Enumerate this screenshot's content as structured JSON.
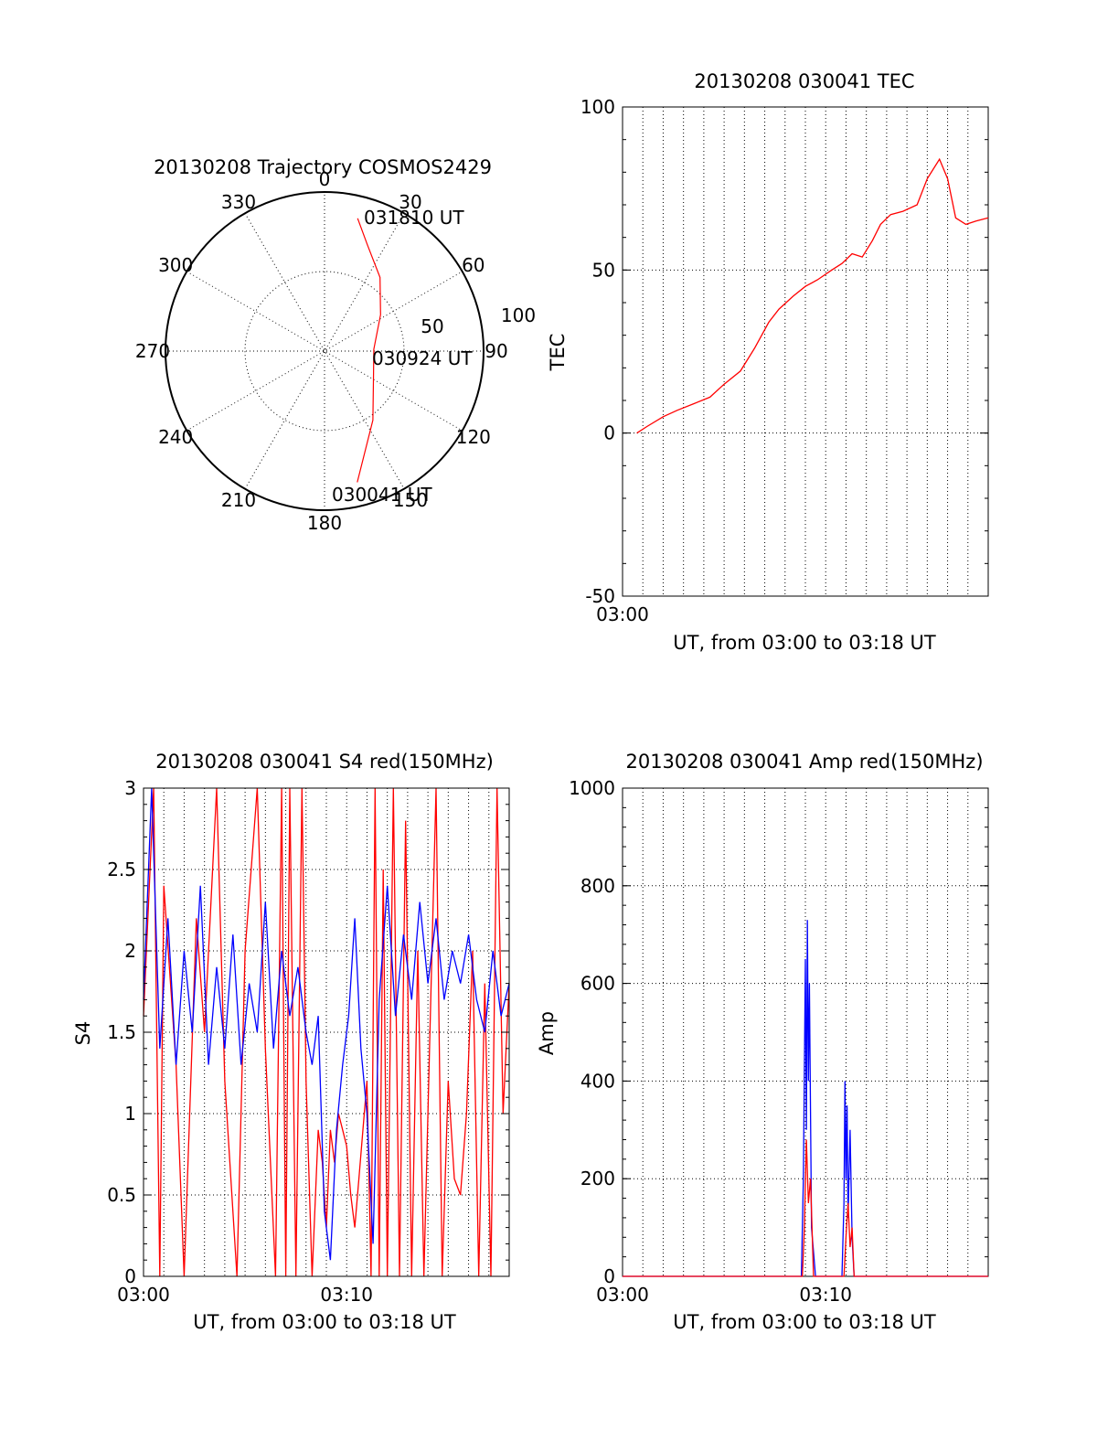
{
  "chart_data": [
    {
      "type": "scatter",
      "subtype": "polar-trajectory",
      "title": "20130208 Trajectory COSMOS2429",
      "azimuth_labels": [
        "0",
        "30",
        "60",
        "90",
        "120",
        "150",
        "180",
        "210",
        "240",
        "270",
        "300",
        "330"
      ],
      "radial_labels": [
        "50",
        "100"
      ],
      "rlim": [
        0,
        100
      ],
      "points_label": [
        "031810 UT",
        "030924 UT",
        "030041 UT"
      ],
      "series": [
        {
          "color": "#ff0000",
          "points": [
            {
              "az": 14,
              "zenith": 86
            },
            {
              "az": 22,
              "zenith": 72
            },
            {
              "az": 37,
              "zenith": 58
            },
            {
              "az": 57,
              "zenith": 42
            },
            {
              "az": 88,
              "zenith": 31
            },
            {
              "az": 115,
              "zenith": 34
            },
            {
              "az": 145,
              "zenith": 53
            },
            {
              "az": 166,
              "zenith": 85
            }
          ]
        }
      ]
    },
    {
      "type": "line",
      "title": "20130208 030041 TEC",
      "xlabel": "UT, from 03:00 to 03:18 UT",
      "ylabel": "TEC",
      "xlim": [
        0,
        18
      ],
      "ylim": [
        -50,
        100
      ],
      "xticks": [
        {
          "v": 0,
          "label": "03:00"
        }
      ],
      "yticks": [
        {
          "v": -50,
          "label": "-50"
        },
        {
          "v": 0,
          "label": "0"
        },
        {
          "v": 50,
          "label": "50"
        },
        {
          "v": 100,
          "label": "100"
        }
      ],
      "series": [
        {
          "color": "#ff0000",
          "x": [
            0.7,
            1.2,
            2.0,
            2.7,
            3.5,
            4.3,
            5.0,
            5.8,
            6.5,
            7.2,
            7.7,
            8.4,
            9.0,
            9.6,
            10.3,
            10.8,
            11.3,
            11.8,
            12.3,
            12.7,
            13.2,
            13.8,
            14.5,
            15.0,
            15.6,
            16.0,
            16.4,
            16.9,
            17.4,
            18.0
          ],
          "y": [
            0,
            2,
            5,
            7,
            9,
            11,
            15,
            19,
            26,
            34,
            38,
            42,
            45,
            47,
            50,
            52,
            55,
            54,
            59,
            64,
            67,
            68,
            70,
            78,
            84,
            78,
            66,
            64,
            65,
            66
          ]
        }
      ]
    },
    {
      "type": "line",
      "title": "20130208 030041 S4 red(150MHz)",
      "xlabel": "UT, from 03:00 to 03:18 UT",
      "ylabel": "S4",
      "xlim": [
        0,
        18
      ],
      "ylim": [
        0,
        3
      ],
      "xticks": [
        {
          "v": 0,
          "label": "03:00"
        },
        {
          "v": 10,
          "label": "03:10"
        }
      ],
      "yticks": [
        {
          "v": 0,
          "label": "0"
        },
        {
          "v": 0.5,
          "label": "0.5"
        },
        {
          "v": 1,
          "label": "1"
        },
        {
          "v": 1.5,
          "label": "1.5"
        },
        {
          "v": 2,
          "label": "2"
        },
        {
          "v": 2.5,
          "label": "2.5"
        },
        {
          "v": 3,
          "label": "3"
        }
      ],
      "series": [
        {
          "color": "#ff0000",
          "x": [
            0.0,
            0.5,
            0.8,
            1.0,
            1.6,
            2.0,
            2.6,
            3.0,
            3.6,
            4.0,
            4.6,
            5.0,
            5.6,
            6.0,
            6.5,
            6.8,
            7.0,
            7.2,
            7.5,
            7.8,
            8.0,
            8.3,
            8.6,
            8.8,
            9.0,
            9.2,
            9.4,
            9.6,
            9.8,
            10.0,
            10.2,
            10.4,
            10.6,
            10.8,
            11.0,
            11.2,
            11.4,
            11.6,
            11.8,
            12.0,
            12.3,
            12.6,
            12.9,
            13.2,
            13.5,
            13.8,
            14.1,
            14.4,
            14.7,
            15.0,
            15.3,
            15.6,
            15.9,
            16.2,
            16.5,
            16.8,
            17.1,
            17.4,
            17.7,
            18.0
          ],
          "y": [
            1.6,
            3.0,
            0.0,
            2.4,
            1.3,
            0.0,
            2.2,
            1.5,
            3.0,
            1.2,
            0.0,
            2.0,
            3.0,
            1.4,
            0.0,
            3.0,
            0.0,
            3.0,
            0.0,
            3.0,
            1.2,
            0.0,
            0.9,
            0.7,
            0.3,
            0.9,
            0.7,
            1.0,
            0.9,
            0.8,
            0.5,
            0.3,
            0.6,
            0.9,
            1.2,
            0.0,
            3.0,
            0.0,
            2.5,
            0.0,
            3.0,
            0.0,
            2.8,
            0.0,
            2.0,
            0.0,
            1.5,
            3.0,
            0.0,
            1.2,
            0.6,
            0.5,
            1.0,
            2.0,
            0.0,
            1.8,
            0.0,
            3.0,
            1.0,
            1.8
          ]
        },
        {
          "color": "#0000ff",
          "x": [
            0.0,
            0.4,
            0.8,
            1.2,
            1.6,
            2.0,
            2.4,
            2.8,
            3.2,
            3.6,
            4.0,
            4.4,
            4.8,
            5.2,
            5.6,
            6.0,
            6.4,
            6.8,
            7.2,
            7.6,
            8.0,
            8.3,
            8.6,
            8.9,
            9.2,
            9.5,
            9.8,
            10.1,
            10.4,
            10.7,
            11.0,
            11.3,
            11.6,
            12.0,
            12.4,
            12.8,
            13.2,
            13.6,
            14.0,
            14.4,
            14.8,
            15.2,
            15.6,
            16.0,
            16.4,
            16.8,
            17.2,
            17.6,
            18.0
          ],
          "y": [
            1.7,
            3.0,
            1.4,
            2.2,
            1.3,
            2.0,
            1.5,
            2.4,
            1.3,
            1.9,
            1.4,
            2.1,
            1.3,
            1.8,
            1.5,
            2.3,
            1.4,
            2.0,
            1.6,
            1.9,
            1.5,
            1.3,
            1.6,
            0.4,
            0.1,
            0.9,
            1.3,
            1.6,
            2.2,
            1.4,
            1.0,
            0.2,
            1.7,
            2.4,
            1.6,
            2.1,
            1.7,
            2.3,
            1.8,
            2.2,
            1.7,
            2.0,
            1.8,
            2.1,
            1.7,
            1.5,
            2.0,
            1.6,
            1.8
          ]
        }
      ]
    },
    {
      "type": "line",
      "title": "20130208 030041 Amp red(150MHz)",
      "xlabel": "UT, from 03:00 to 03:18 UT",
      "ylabel": "Amp",
      "xlim": [
        0,
        18
      ],
      "ylim": [
        0,
        1000
      ],
      "xticks": [
        {
          "v": 0,
          "label": "03:00"
        },
        {
          "v": 10,
          "label": "03:10"
        }
      ],
      "yticks": [
        {
          "v": 0,
          "label": "0"
        },
        {
          "v": 200,
          "label": "200"
        },
        {
          "v": 400,
          "label": "400"
        },
        {
          "v": 600,
          "label": "600"
        },
        {
          "v": 800,
          "label": "800"
        },
        {
          "v": 1000,
          "label": "1000"
        }
      ],
      "series": [
        {
          "color": "#0000ff",
          "x": [
            0.0,
            8.8,
            8.9,
            9.0,
            9.05,
            9.1,
            9.15,
            9.2,
            9.3,
            9.5,
            10.8,
            10.9,
            10.95,
            11.0,
            11.05,
            11.1,
            11.2,
            11.3,
            11.4,
            18.0
          ],
          "y": [
            0,
            0,
            200,
            650,
            300,
            730,
            400,
            600,
            100,
            0,
            0,
            150,
            400,
            200,
            350,
            120,
            300,
            80,
            0,
            0
          ]
        },
        {
          "color": "#ff0000",
          "x": [
            0.0,
            8.85,
            8.95,
            9.05,
            9.15,
            9.25,
            9.4,
            10.9,
            11.0,
            11.1,
            11.2,
            11.3,
            11.4,
            18.0
          ],
          "y": [
            0,
            0,
            100,
            280,
            150,
            200,
            0,
            0,
            80,
            150,
            60,
            100,
            0,
            0
          ]
        }
      ]
    }
  ]
}
